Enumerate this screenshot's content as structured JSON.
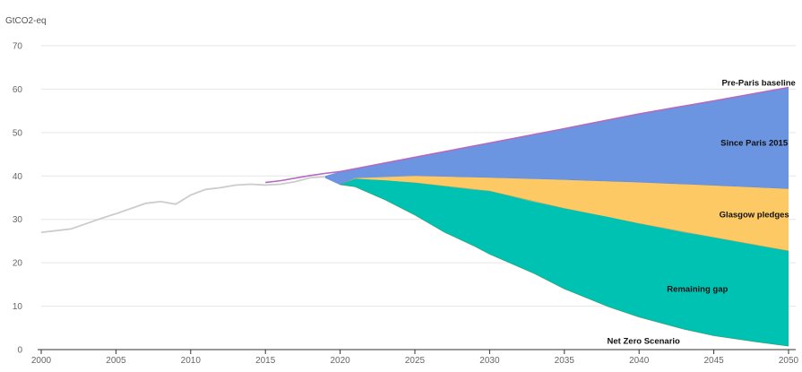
{
  "chart_data": {
    "type": "area",
    "unit_label": "GtCO2-eq",
    "ylim": [
      0,
      70
    ],
    "xlim": [
      2000,
      2050
    ],
    "yticks": [
      0,
      10,
      20,
      30,
      40,
      50,
      60,
      70
    ],
    "xticks": [
      2000,
      2005,
      2010,
      2015,
      2020,
      2025,
      2030,
      2035,
      2040,
      2045,
      2050
    ],
    "grid": true,
    "colors": {
      "historical": "#cccccc",
      "pre_paris_line": "#b56ac2",
      "since_paris": "#6b95e0",
      "glasgow": "#fdc964",
      "remaining_gap": "#00c2b2"
    },
    "historical": {
      "x": [
        2000,
        2001,
        2002,
        2003,
        2004,
        2005,
        2006,
        2007,
        2008,
        2009,
        2010,
        2011,
        2012,
        2013,
        2014,
        2015,
        2016,
        2017,
        2018,
        2019
      ],
      "y": [
        27.0,
        27.4,
        27.8,
        29.0,
        30.2,
        31.3,
        32.5,
        33.7,
        34.1,
        33.5,
        35.6,
        36.9,
        37.3,
        37.9,
        38.1,
        37.9,
        38.1,
        38.7,
        39.6,
        39.8
      ]
    },
    "pre_paris_baseline": {
      "x": [
        2015,
        2016,
        2017,
        2018,
        2019,
        2020,
        2025,
        2030,
        2035,
        2040,
        2045,
        2050
      ],
      "y": [
        38.5,
        38.9,
        39.5,
        40.1,
        40.6,
        41.0,
        44.3,
        47.6,
        50.9,
        54.3,
        57.3,
        60.4
      ]
    },
    "series": [
      {
        "name": "Since Paris 2015",
        "x": [
          2019,
          2020,
          2025,
          2030,
          2035,
          2040,
          2045,
          2050
        ],
        "upper": [
          40.0,
          41.0,
          44.3,
          47.6,
          50.9,
          54.3,
          57.3,
          60.4
        ],
        "lower": [
          39.6,
          38.0,
          40.0,
          39.6,
          39.1,
          38.5,
          37.8,
          37.0
        ]
      },
      {
        "name": "Glasgow pledges",
        "x": [
          2020,
          2021,
          2025,
          2030,
          2035,
          2040,
          2045,
          2050
        ],
        "upper": [
          38.0,
          39.5,
          40.0,
          39.6,
          39.1,
          38.5,
          37.8,
          37.0
        ],
        "lower": [
          38.0,
          39.3,
          38.4,
          36.5,
          32.5,
          29.0,
          25.8,
          22.7
        ]
      },
      {
        "name": "Remaining gap",
        "x": [
          2020,
          2021,
          2023,
          2025,
          2027,
          2029,
          2030,
          2033,
          2035,
          2038,
          2040,
          2043,
          2045,
          2048,
          2050
        ],
        "upper": [
          38.0,
          39.3,
          39.0,
          38.4,
          37.6,
          36.8,
          36.5,
          34.0,
          32.5,
          30.5,
          29.0,
          27.0,
          25.8,
          23.9,
          22.7
        ],
        "lower": [
          38.0,
          37.5,
          34.5,
          31.0,
          27.0,
          23.8,
          22.0,
          17.5,
          14.0,
          9.8,
          7.5,
          4.7,
          3.2,
          1.7,
          0.8
        ]
      }
    ],
    "annotations": [
      {
        "text": "Pre-Paris baseline",
        "x": 2048,
        "y": 60.8
      },
      {
        "text": "Since Paris 2015",
        "x": 2047.7,
        "y": 47.0
      },
      {
        "text": "Glasgow pledges",
        "x": 2047.7,
        "y": 30.5
      },
      {
        "text": "Remaining gap",
        "x": 2043.9,
        "y": 13.3
      },
      {
        "text": "Net Zero Scenario",
        "x": 2040.3,
        "y": 1.3
      }
    ]
  }
}
